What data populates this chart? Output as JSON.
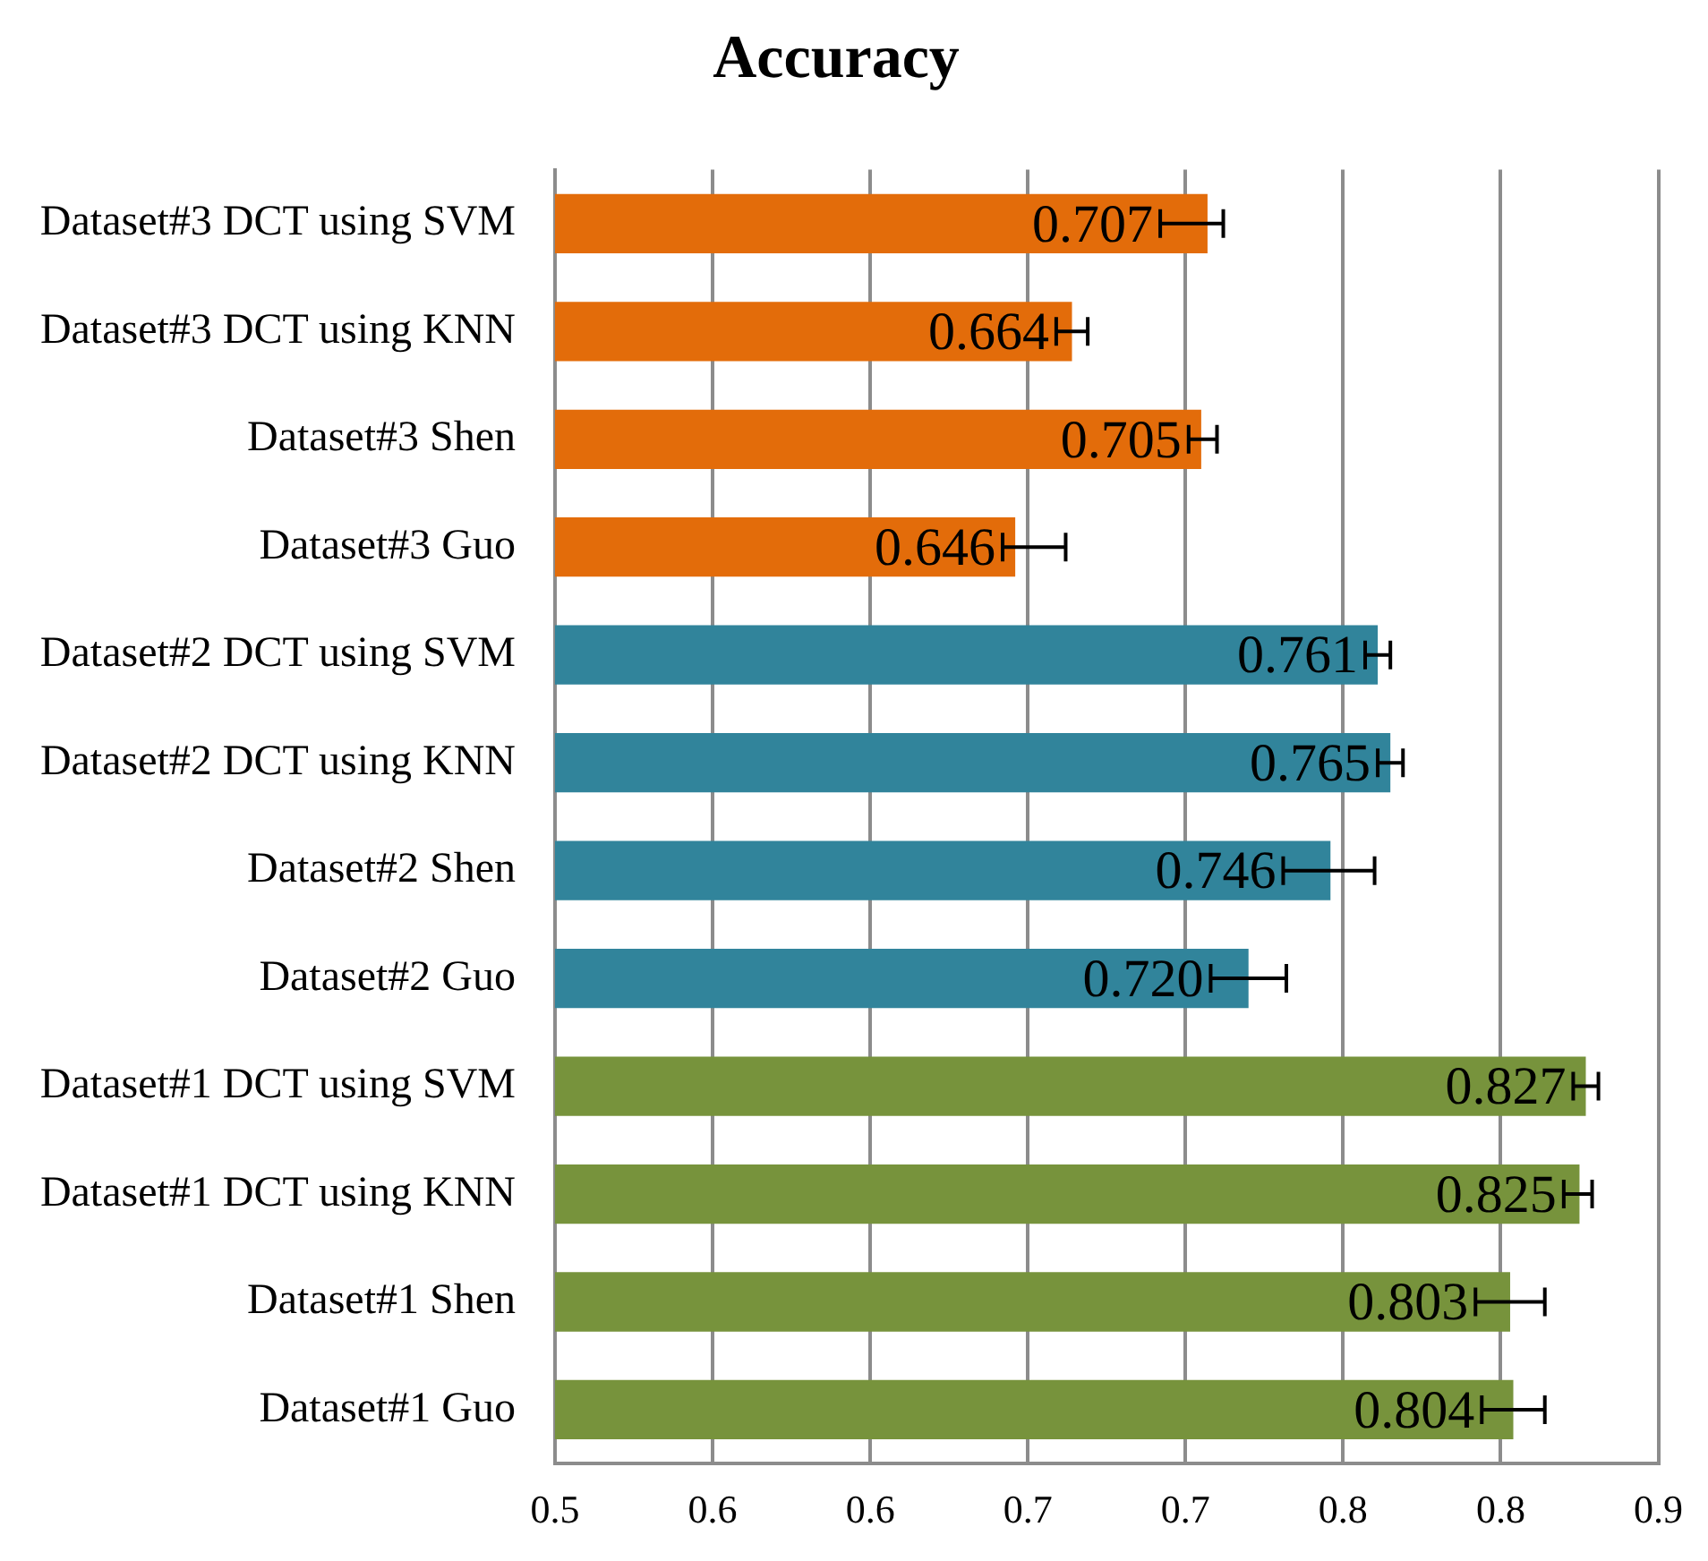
{
  "chart_data": {
    "type": "bar",
    "orientation": "horizontal",
    "title": "Accuracy",
    "categories": [
      "Dataset#3 DCT using SVM",
      "Dataset#3 DCT using KNN",
      "Dataset#3 Shen",
      "Dataset#3 Guo",
      "Dataset#2 DCT using SVM",
      "Dataset#2 DCT using KNN",
      "Dataset#2 Shen",
      "Dataset#2 Guo",
      "Dataset#1 DCT using SVM",
      "Dataset#1 DCT using KNN",
      "Dataset#1 Shen",
      "Dataset#1 Guo"
    ],
    "values": [
      0.707,
      0.664,
      0.705,
      0.646,
      0.761,
      0.765,
      0.746,
      0.72,
      0.827,
      0.825,
      0.803,
      0.804
    ],
    "value_labels": [
      "0.707",
      "0.664",
      "0.705",
      "0.646",
      "0.761",
      "0.765",
      "0.746",
      "0.720",
      "0.827",
      "0.825",
      "0.803",
      "0.804"
    ],
    "errors": [
      [
        0.692,
        0.712
      ],
      [
        0.659,
        0.669
      ],
      [
        0.701,
        0.71
      ],
      [
        0.642,
        0.662
      ],
      [
        0.757,
        0.765
      ],
      [
        0.761,
        0.769
      ],
      [
        0.731,
        0.76
      ],
      [
        0.708,
        0.732
      ],
      [
        0.823,
        0.831
      ],
      [
        0.82,
        0.829
      ],
      [
        0.792,
        0.814
      ],
      [
        0.794,
        0.814
      ]
    ],
    "colors": [
      "#e36c0a",
      "#e36c0a",
      "#e36c0a",
      "#e36c0a",
      "#31849b",
      "#31849b",
      "#31849b",
      "#31849b",
      "#77933c",
      "#77933c",
      "#77933c",
      "#77933c"
    ],
    "xlim": [
      0.5,
      0.85
    ],
    "xticks": [
      0.5,
      {
        "value": 0.55,
        "label": "0.6"
      },
      0.6,
      {
        "value": 0.65,
        "label": "0.7"
      },
      0.7,
      {
        "value": 0.75,
        "label": "0.8"
      },
      0.8,
      {
        "value": 0.85,
        "label": "0.9"
      }
    ],
    "grid": "x",
    "legend": false
  }
}
